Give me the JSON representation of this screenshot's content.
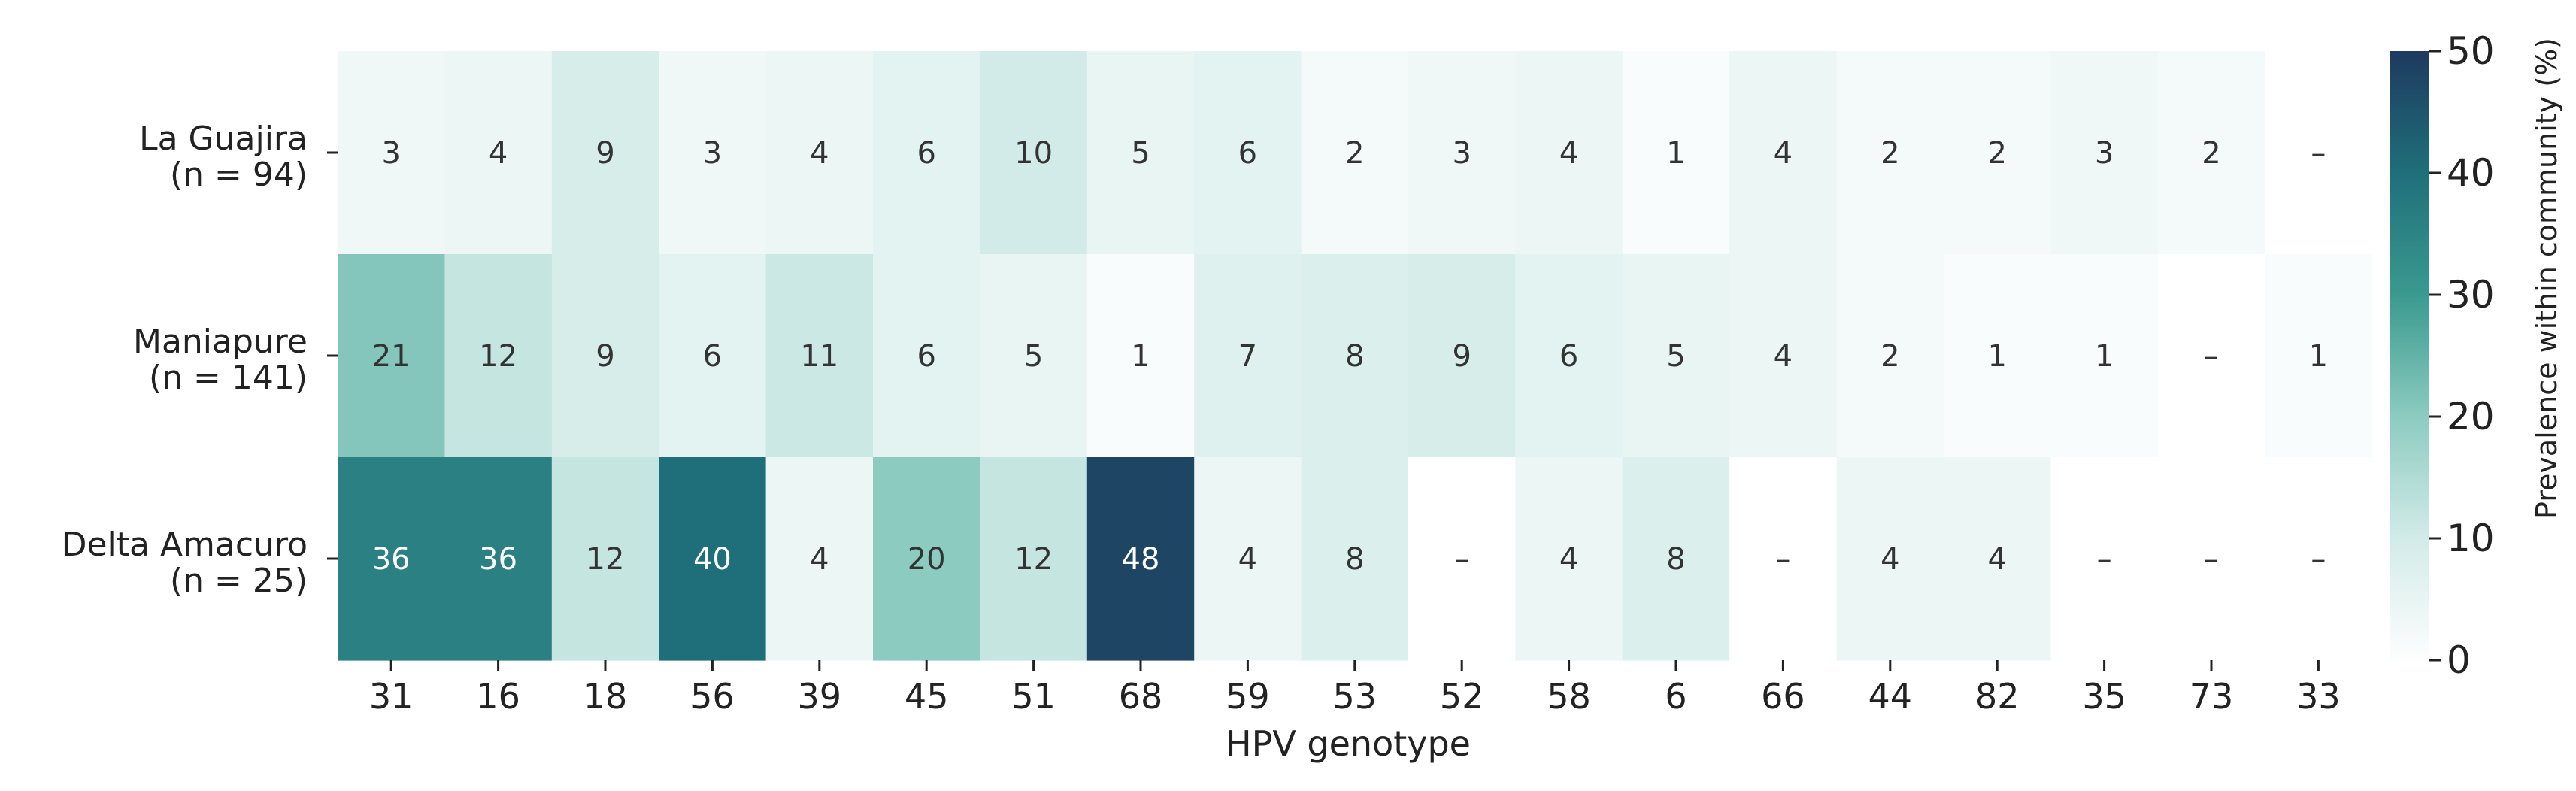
{
  "chart_data": {
    "type": "heatmap",
    "xlabel": "HPV genotype",
    "colorbar_label": "Prevalence within community (%)",
    "colorbar_ticks": [
      0,
      10,
      20,
      30,
      40,
      50
    ],
    "vmin": 0,
    "vmax": 50,
    "missing_label": "–",
    "columns": [
      "31",
      "16",
      "18",
      "56",
      "39",
      "45",
      "51",
      "68",
      "59",
      "53",
      "52",
      "58",
      "6",
      "66",
      "44",
      "82",
      "35",
      "73",
      "33"
    ],
    "rows": [
      {
        "name": "La Guajira",
        "n_label": "(n = 94)",
        "values": [
          3,
          4,
          9,
          3,
          4,
          6,
          10,
          5,
          6,
          2,
          3,
          4,
          1,
          4,
          2,
          2,
          3,
          2,
          null
        ]
      },
      {
        "name": "Maniapure",
        "n_label": "(n = 141)",
        "values": [
          21,
          12,
          9,
          6,
          11,
          6,
          5,
          1,
          7,
          8,
          9,
          6,
          5,
          4,
          2,
          1,
          1,
          null,
          1
        ]
      },
      {
        "name": "Delta Amacuro",
        "n_label": "(n = 25)",
        "values": [
          36,
          36,
          12,
          40,
          4,
          20,
          12,
          48,
          4,
          8,
          null,
          4,
          8,
          null,
          4,
          4,
          null,
          null,
          null
        ]
      }
    ],
    "colormap": [
      "#fdfefe",
      "#d2ebe8",
      "#8ccbc0",
      "#3a9a8f",
      "#1f6f7a",
      "#1e3a5f"
    ]
  }
}
